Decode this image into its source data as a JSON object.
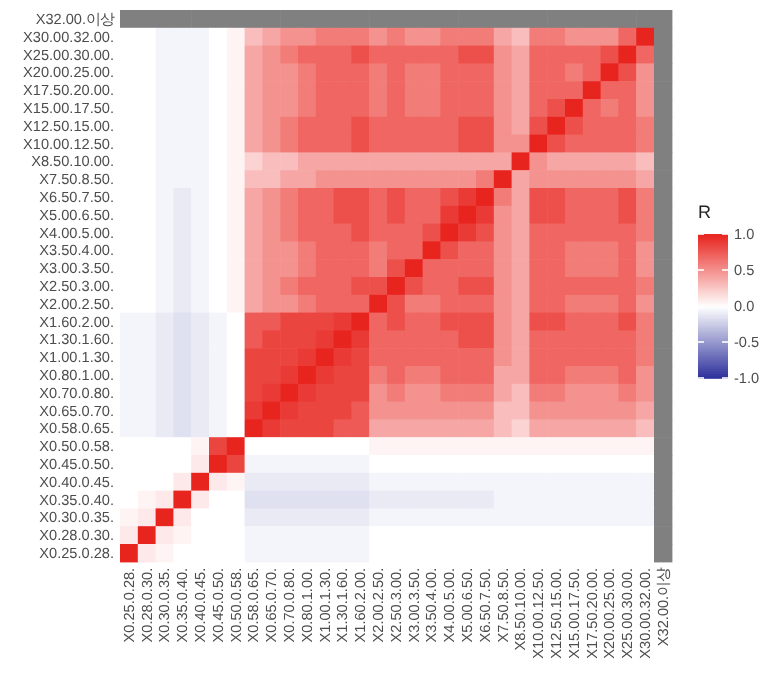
{
  "chart_data": {
    "type": "heatmap",
    "clabel": "R",
    "categories": [
      "X0.25.0.28.",
      "X0.28.0.30.",
      "X0.30.0.35.",
      "X0.35.0.40.",
      "X0.40.0.45.",
      "X0.45.0.50.",
      "X0.50.0.58.",
      "X0.58.0.65.",
      "X0.65.0.70.",
      "X0.70.0.80.",
      "X0.80.1.00.",
      "X1.00.1.30.",
      "X1.30.1.60.",
      "X1.60.2.00.",
      "X2.00.2.50.",
      "X2.50.3.00.",
      "X3.00.3.50.",
      "X3.50.4.00.",
      "X4.00.5.00.",
      "X5.00.6.50.",
      "X6.50.7.50.",
      "X7.50.8.50.",
      "X8.50.10.00.",
      "X10.00.12.50.",
      "X12.50.15.00.",
      "X15.00.17.50.",
      "X17.50.20.00.",
      "X20.00.25.00.",
      "X25.00.30.00.",
      "X30.00.32.00.",
      "X32.00.이상"
    ],
    "y_categories": [
      "X32.00.이상",
      "X30.00.32.00.",
      "X25.00.30.00.",
      "X20.00.25.00.",
      "X17.50.20.00.",
      "X15.00.17.50.",
      "X12.50.15.00.",
      "X10.00.12.50.",
      "X8.50.10.00.",
      "X7.50.8.50.",
      "X6.50.7.50.",
      "X5.00.6.50.",
      "X4.00.5.00.",
      "X3.50.4.00.",
      "X3.00.3.50.",
      "X2.50.3.00.",
      "X2.00.2.50.",
      "X1.60.2.00.",
      "X1.30.1.60.",
      "X1.00.1.30.",
      "X0.80.1.00.",
      "X0.70.0.80.",
      "X0.65.0.70.",
      "X0.58.0.65.",
      "X0.50.0.58.",
      "X0.45.0.50.",
      "X0.40.0.45.",
      "X0.35.0.40.",
      "X0.30.0.35.",
      "X0.28.0.30.",
      "X0.25.0.28."
    ],
    "cells": [
      [
        null,
        null,
        null,
        null,
        null,
        null,
        null,
        null,
        null,
        null,
        null,
        null,
        null,
        null,
        null,
        null,
        null,
        null,
        null,
        null,
        null,
        null,
        null,
        null,
        null,
        null,
        null,
        null,
        null,
        null,
        null
      ],
      [
        0,
        0,
        -0.05,
        -0.05,
        -0.05,
        0,
        0.05,
        0.3,
        0.4,
        0.5,
        0.5,
        0.6,
        0.6,
        0.6,
        0.5,
        0.6,
        0.5,
        0.5,
        0.6,
        0.6,
        0.6,
        0.4,
        0.3,
        0.6,
        0.6,
        0.5,
        0.5,
        0.5,
        0.7,
        1,
        null
      ],
      [
        0,
        0,
        -0.05,
        -0.05,
        -0.05,
        0,
        0.05,
        0.4,
        0.5,
        0.6,
        0.7,
        0.7,
        0.7,
        0.8,
        0.7,
        0.7,
        0.7,
        0.7,
        0.7,
        0.8,
        0.8,
        0.5,
        0.4,
        0.7,
        0.7,
        0.7,
        0.7,
        0.8,
        1,
        0.7,
        null
      ],
      [
        0,
        0,
        -0.05,
        -0.05,
        -0.05,
        0,
        0.05,
        0.4,
        0.5,
        0.5,
        0.6,
        0.7,
        0.7,
        0.7,
        0.6,
        0.7,
        0.6,
        0.6,
        0.7,
        0.7,
        0.7,
        0.5,
        0.4,
        0.7,
        0.7,
        0.6,
        0.7,
        1,
        0.8,
        0.5,
        null
      ],
      [
        0,
        0,
        -0.05,
        -0.05,
        -0.05,
        0,
        0.05,
        0.4,
        0.5,
        0.5,
        0.6,
        0.7,
        0.7,
        0.7,
        0.6,
        0.7,
        0.6,
        0.6,
        0.7,
        0.7,
        0.7,
        0.5,
        0.4,
        0.7,
        0.7,
        0.7,
        1,
        0.7,
        0.7,
        0.5,
        null
      ],
      [
        0,
        0,
        -0.05,
        -0.05,
        -0.05,
        0,
        0.05,
        0.4,
        0.5,
        0.5,
        0.6,
        0.7,
        0.7,
        0.7,
        0.6,
        0.7,
        0.6,
        0.6,
        0.7,
        0.7,
        0.7,
        0.5,
        0.4,
        0.7,
        0.8,
        1,
        0.7,
        0.6,
        0.7,
        0.5,
        null
      ],
      [
        0,
        0,
        -0.05,
        -0.05,
        -0.05,
        0,
        0.05,
        0.4,
        0.5,
        0.6,
        0.7,
        0.7,
        0.7,
        0.8,
        0.7,
        0.7,
        0.7,
        0.7,
        0.7,
        0.8,
        0.8,
        0.5,
        0.4,
        0.8,
        1,
        0.8,
        0.7,
        0.7,
        0.7,
        0.6,
        null
      ],
      [
        0,
        0,
        -0.05,
        -0.05,
        -0.05,
        0,
        0.05,
        0.4,
        0.5,
        0.6,
        0.7,
        0.7,
        0.7,
        0.8,
        0.7,
        0.7,
        0.7,
        0.7,
        0.7,
        0.8,
        0.8,
        0.5,
        0.5,
        1,
        0.8,
        0.7,
        0.7,
        0.7,
        0.7,
        0.6,
        null
      ],
      [
        0,
        0,
        -0.05,
        -0.05,
        -0.05,
        0,
        0.05,
        0.2,
        0.3,
        0.3,
        0.4,
        0.4,
        0.4,
        0.4,
        0.4,
        0.4,
        0.4,
        0.4,
        0.4,
        0.4,
        0.4,
        0.4,
        1,
        0.5,
        0.4,
        0.4,
        0.4,
        0.4,
        0.4,
        0.3,
        null
      ],
      [
        0,
        0,
        -0.05,
        -0.05,
        -0.05,
        0,
        0.05,
        0.3,
        0.3,
        0.4,
        0.4,
        0.5,
        0.5,
        0.5,
        0.5,
        0.5,
        0.5,
        0.5,
        0.5,
        0.5,
        0.6,
        1,
        0.4,
        0.5,
        0.5,
        0.5,
        0.5,
        0.5,
        0.5,
        0.4,
        null
      ],
      [
        0,
        0,
        -0.05,
        -0.1,
        -0.05,
        0,
        0.05,
        0.4,
        0.5,
        0.6,
        0.7,
        0.7,
        0.8,
        0.8,
        0.7,
        0.8,
        0.7,
        0.7,
        0.8,
        0.9,
        1,
        0.6,
        0.4,
        0.8,
        0.8,
        0.7,
        0.7,
        0.7,
        0.8,
        0.6,
        null
      ],
      [
        0,
        0,
        -0.05,
        -0.1,
        -0.05,
        0,
        0.05,
        0.4,
        0.5,
        0.6,
        0.7,
        0.7,
        0.8,
        0.8,
        0.7,
        0.8,
        0.7,
        0.7,
        0.9,
        1,
        0.9,
        0.5,
        0.4,
        0.8,
        0.8,
        0.7,
        0.7,
        0.7,
        0.8,
        0.6,
        null
      ],
      [
        0,
        0,
        -0.05,
        -0.1,
        -0.05,
        0,
        0.05,
        0.4,
        0.5,
        0.6,
        0.7,
        0.7,
        0.7,
        0.8,
        0.7,
        0.7,
        0.7,
        0.8,
        1,
        0.9,
        0.8,
        0.5,
        0.4,
        0.7,
        0.7,
        0.7,
        0.7,
        0.7,
        0.7,
        0.6,
        null
      ],
      [
        0,
        0,
        -0.05,
        -0.1,
        -0.05,
        0,
        0.05,
        0.4,
        0.5,
        0.5,
        0.6,
        0.7,
        0.7,
        0.7,
        0.6,
        0.7,
        0.7,
        1,
        0.8,
        0.7,
        0.7,
        0.5,
        0.4,
        0.7,
        0.7,
        0.6,
        0.6,
        0.6,
        0.7,
        0.5,
        null
      ],
      [
        0,
        0,
        -0.05,
        -0.1,
        -0.05,
        0,
        0.05,
        0.4,
        0.5,
        0.5,
        0.6,
        0.7,
        0.7,
        0.7,
        0.6,
        0.8,
        1,
        0.7,
        0.7,
        0.7,
        0.7,
        0.5,
        0.4,
        0.7,
        0.7,
        0.6,
        0.6,
        0.6,
        0.7,
        0.5,
        null
      ],
      [
        0,
        0,
        -0.05,
        -0.1,
        -0.05,
        0,
        0.05,
        0.4,
        0.5,
        0.6,
        0.7,
        0.7,
        0.7,
        0.8,
        0.8,
        1,
        0.8,
        0.7,
        0.7,
        0.8,
        0.8,
        0.5,
        0.4,
        0.7,
        0.7,
        0.7,
        0.7,
        0.7,
        0.7,
        0.6,
        null
      ],
      [
        0,
        0,
        -0.05,
        -0.1,
        -0.05,
        0,
        0.05,
        0.4,
        0.5,
        0.5,
        0.6,
        0.7,
        0.7,
        0.7,
        1,
        0.8,
        0.6,
        0.6,
        0.7,
        0.7,
        0.7,
        0.5,
        0.4,
        0.7,
        0.7,
        0.6,
        0.6,
        0.6,
        0.7,
        0.5,
        null
      ],
      [
        -0.05,
        -0.05,
        -0.1,
        -0.15,
        -0.1,
        -0.05,
        0,
        0.75,
        0.75,
        0.85,
        0.85,
        0.85,
        0.9,
        1,
        0.7,
        0.8,
        0.7,
        0.7,
        0.8,
        0.8,
        0.8,
        0.5,
        0.4,
        0.8,
        0.8,
        0.7,
        0.7,
        0.7,
        0.8,
        0.6,
        null
      ],
      [
        -0.05,
        -0.05,
        -0.1,
        -0.15,
        -0.1,
        -0.05,
        0,
        0.75,
        0.85,
        0.85,
        0.85,
        0.9,
        1,
        0.9,
        0.7,
        0.7,
        0.7,
        0.7,
        0.7,
        0.8,
        0.8,
        0.5,
        0.4,
        0.7,
        0.7,
        0.7,
        0.7,
        0.7,
        0.7,
        0.6,
        null
      ],
      [
        -0.05,
        -0.05,
        -0.1,
        -0.15,
        -0.1,
        -0.05,
        0,
        0.85,
        0.85,
        0.85,
        0.9,
        1,
        0.9,
        0.85,
        0.7,
        0.7,
        0.7,
        0.7,
        0.7,
        0.7,
        0.7,
        0.5,
        0.4,
        0.7,
        0.7,
        0.7,
        0.7,
        0.7,
        0.7,
        0.6,
        null
      ],
      [
        -0.05,
        -0.05,
        -0.1,
        -0.15,
        -0.1,
        -0.05,
        0,
        0.85,
        0.85,
        0.9,
        1,
        0.9,
        0.85,
        0.85,
        0.6,
        0.7,
        0.6,
        0.6,
        0.7,
        0.7,
        0.7,
        0.4,
        0.4,
        0.7,
        0.7,
        0.6,
        0.6,
        0.6,
        0.7,
        0.5,
        null
      ],
      [
        -0.05,
        -0.05,
        -0.1,
        -0.15,
        -0.1,
        -0.05,
        0,
        0.85,
        0.9,
        1,
        0.9,
        0.85,
        0.85,
        0.85,
        0.5,
        0.6,
        0.5,
        0.5,
        0.6,
        0.6,
        0.6,
        0.4,
        0.3,
        0.6,
        0.6,
        0.5,
        0.5,
        0.5,
        0.6,
        0.5,
        null
      ],
      [
        -0.05,
        -0.05,
        -0.1,
        -0.15,
        -0.1,
        -0.05,
        0,
        0.9,
        1,
        0.9,
        0.85,
        0.85,
        0.85,
        0.75,
        0.5,
        0.5,
        0.5,
        0.5,
        0.5,
        0.5,
        0.5,
        0.3,
        0.3,
        0.5,
        0.5,
        0.5,
        0.5,
        0.5,
        0.5,
        0.4,
        null
      ],
      [
        -0.05,
        -0.05,
        -0.1,
        -0.15,
        -0.1,
        -0.05,
        0,
        1,
        0.9,
        0.85,
        0.85,
        0.85,
        0.75,
        0.75,
        0.4,
        0.4,
        0.4,
        0.4,
        0.4,
        0.4,
        0.4,
        0.3,
        0.2,
        0.4,
        0.4,
        0.4,
        0.4,
        0.4,
        0.4,
        0.3,
        null
      ],
      [
        0,
        0,
        0,
        0,
        0.05,
        0.85,
        1,
        0,
        0,
        0,
        0,
        0,
        0,
        0,
        0.05,
        0.05,
        0.05,
        0.05,
        0.05,
        0.05,
        0.05,
        0.05,
        0.05,
        0.05,
        0.05,
        0.05,
        0.05,
        0.05,
        0.05,
        0.05,
        null
      ],
      [
        0,
        0,
        0,
        0,
        0.1,
        1,
        0.85,
        -0.05,
        -0.05,
        -0.05,
        -0.05,
        -0.05,
        -0.05,
        -0.05,
        0,
        0,
        0,
        0,
        0,
        0,
        0,
        0,
        0,
        0,
        0,
        0,
        0,
        0,
        0,
        0,
        null
      ],
      [
        0,
        0,
        0,
        0.1,
        1,
        0.1,
        0.05,
        -0.1,
        -0.1,
        -0.1,
        -0.1,
        -0.1,
        -0.1,
        -0.1,
        -0.05,
        -0.05,
        -0.05,
        -0.05,
        -0.05,
        -0.05,
        -0.05,
        -0.05,
        -0.05,
        -0.05,
        -0.05,
        -0.05,
        -0.05,
        -0.05,
        -0.05,
        -0.05,
        null
      ],
      [
        0,
        0.05,
        0.1,
        1,
        0.1,
        0,
        0,
        -0.15,
        -0.15,
        -0.15,
        -0.15,
        -0.15,
        -0.15,
        -0.15,
        -0.1,
        -0.1,
        -0.1,
        -0.1,
        -0.1,
        -0.1,
        -0.1,
        -0.05,
        -0.05,
        -0.05,
        -0.05,
        -0.05,
        -0.05,
        -0.05,
        -0.05,
        -0.05,
        null
      ],
      [
        0.05,
        0.1,
        1,
        0.1,
        0,
        0,
        0,
        -0.1,
        -0.1,
        -0.1,
        -0.1,
        -0.1,
        -0.1,
        -0.1,
        -0.05,
        -0.05,
        -0.05,
        -0.05,
        -0.05,
        -0.05,
        -0.05,
        -0.05,
        -0.05,
        -0.05,
        -0.05,
        -0.05,
        -0.05,
        -0.05,
        -0.05,
        -0.05,
        null
      ],
      [
        0.1,
        1,
        0.1,
        0.05,
        0,
        0,
        0,
        -0.05,
        -0.05,
        -0.05,
        -0.05,
        -0.05,
        -0.05,
        -0.05,
        0,
        0,
        0,
        0,
        0,
        0,
        0,
        0,
        0,
        0,
        0,
        0,
        0,
        0,
        0,
        0,
        null
      ],
      [
        1,
        0.1,
        0.05,
        0,
        0,
        0,
        0,
        -0.05,
        -0.05,
        -0.05,
        -0.05,
        -0.05,
        -0.05,
        -0.05,
        0,
        0,
        0,
        0,
        0,
        0,
        0,
        0,
        0,
        0,
        0,
        0,
        0,
        0,
        0,
        0,
        null
      ]
    ],
    "clim": [
      -1,
      1
    ],
    "cticks": [
      {
        "value": 1,
        "label": "1.0"
      },
      {
        "value": 0.5,
        "label": "0.5"
      },
      {
        "value": 0,
        "label": "0.0"
      },
      {
        "value": -0.5,
        "label": "-0.5"
      },
      {
        "value": -1,
        "label": "-1.0"
      }
    ]
  }
}
